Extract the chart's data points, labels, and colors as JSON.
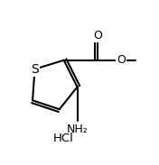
{
  "title": "",
  "background_color": "#ffffff",
  "hcl_label": "HCl",
  "atom_labels": {
    "S": "S",
    "O_carbonyl": "O",
    "O_ester": "O",
    "NH2": "NH₂"
  },
  "figsize": [
    1.76,
    1.83
  ],
  "dpi": 100,
  "line_color": "#000000",
  "text_color": "#000000",
  "line_width": 1.5,
  "font_size": 9
}
